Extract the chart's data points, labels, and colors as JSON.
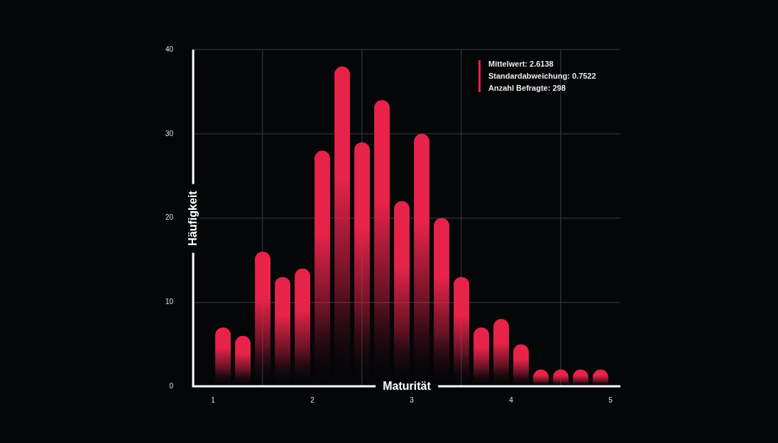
{
  "chart_data": {
    "type": "histogram",
    "xlabel": "Maturität",
    "ylabel": "Häufigkeit",
    "bins": [
      1,
      1.2,
      1.4,
      1.6,
      1.8,
      2,
      2.2,
      2.4,
      2.6,
      2.8,
      3,
      3.2,
      3.4,
      3.6,
      3.8,
      4,
      4.2,
      4.4,
      4.6,
      4.8,
      5
    ],
    "values": [
      7,
      6,
      16,
      13,
      14,
      28,
      38,
      29,
      34,
      22,
      30,
      20,
      13,
      7,
      8,
      5,
      2,
      2,
      2,
      2
    ],
    "color": "#e8234a",
    "xlim": [
      0.8,
      5.1
    ],
    "xticks": [
      1,
      2,
      3,
      4,
      5
    ],
    "ylim": [
      0,
      40
    ],
    "yticks": [
      0,
      10,
      20,
      30,
      40
    ],
    "grid": true,
    "annotations": [
      "Mittelwert: 2.6138",
      "Standardabweichung: 0.7522",
      "Anzahl Befragte: 298"
    ]
  }
}
